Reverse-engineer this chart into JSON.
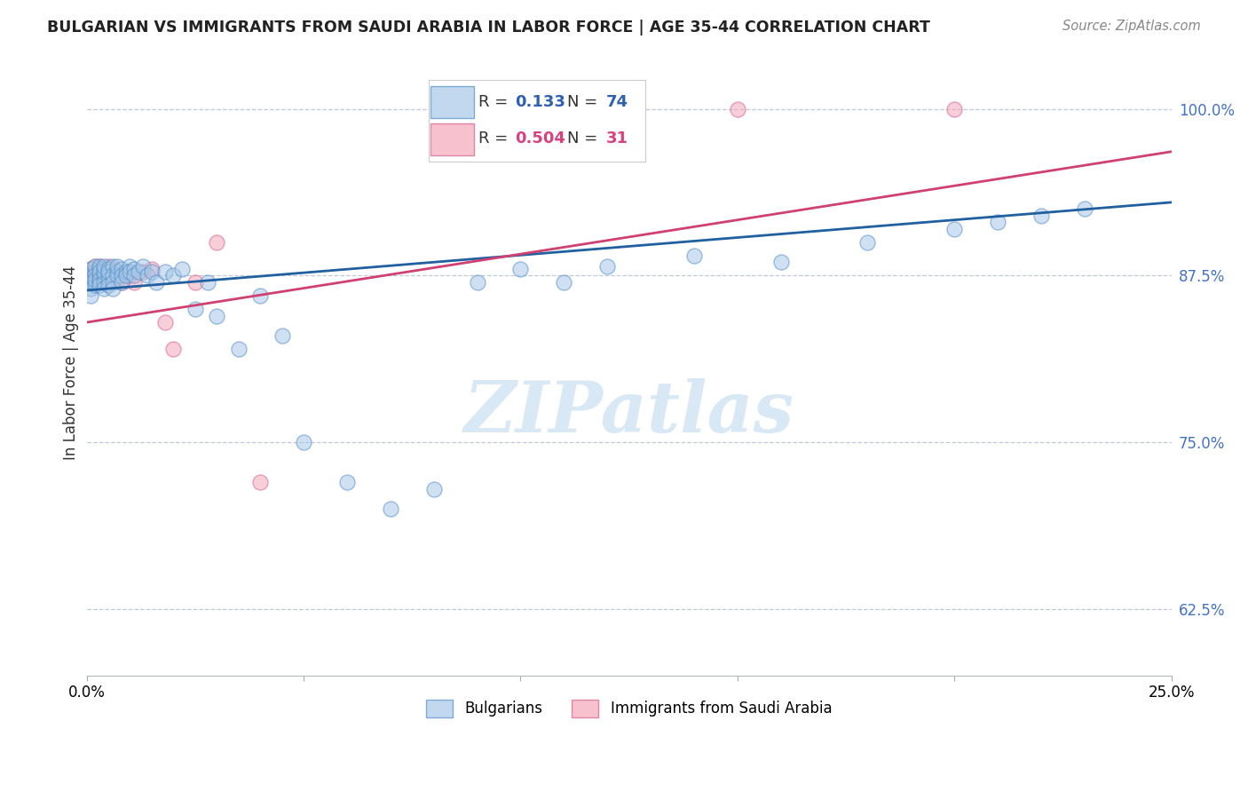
{
  "title": "BULGARIAN VS IMMIGRANTS FROM SAUDI ARABIA IN LABOR FORCE | AGE 35-44 CORRELATION CHART",
  "source": "Source: ZipAtlas.com",
  "ylabel": "In Labor Force | Age 35-44",
  "xlim": [
    0.0,
    0.25
  ],
  "ylim": [
    0.575,
    1.045
  ],
  "yticks": [
    0.625,
    0.75,
    0.875,
    1.0
  ],
  "ytick_labels": [
    "62.5%",
    "75.0%",
    "87.5%",
    "100.0%"
  ],
  "xticks": [
    0.0,
    0.05,
    0.1,
    0.15,
    0.2,
    0.25
  ],
  "xtick_labels": [
    "0.0%",
    "",
    "",
    "",
    "",
    "25.0%"
  ],
  "bulgarian_R": 0.133,
  "bulgarian_N": 74,
  "saudi_R": 0.504,
  "saudi_N": 31,
  "blue_color": "#a8c8e8",
  "pink_color": "#f4a8b8",
  "blue_edge_color": "#5590c8",
  "pink_edge_color": "#d86090",
  "blue_line_color": "#2060a0",
  "pink_line_color": "#d04070",
  "watermark_color": "#d8e8f4",
  "bulgarian_x": [
    0.001,
    0.001,
    0.001,
    0.001,
    0.001,
    0.002,
    0.002,
    0.002,
    0.002,
    0.002,
    0.002,
    0.003,
    0.003,
    0.003,
    0.003,
    0.003,
    0.003,
    0.003,
    0.004,
    0.004,
    0.004,
    0.004,
    0.004,
    0.004,
    0.005,
    0.005,
    0.005,
    0.005,
    0.005,
    0.006,
    0.006,
    0.006,
    0.006,
    0.007,
    0.007,
    0.007,
    0.008,
    0.008,
    0.008,
    0.009,
    0.009,
    0.01,
    0.01,
    0.011,
    0.011,
    0.012,
    0.013,
    0.014,
    0.015,
    0.016,
    0.018,
    0.02,
    0.022,
    0.025,
    0.028,
    0.03,
    0.035,
    0.04,
    0.045,
    0.05,
    0.06,
    0.07,
    0.08,
    0.09,
    0.1,
    0.11,
    0.12,
    0.14,
    0.16,
    0.18,
    0.2,
    0.21,
    0.22,
    0.23
  ],
  "bulgarian_y": [
    0.875,
    0.88,
    0.87,
    0.865,
    0.86,
    0.878,
    0.882,
    0.87,
    0.868,
    0.875,
    0.872,
    0.88,
    0.875,
    0.87,
    0.882,
    0.878,
    0.872,
    0.868,
    0.88,
    0.875,
    0.87,
    0.878,
    0.882,
    0.865,
    0.88,
    0.875,
    0.872,
    0.868,
    0.878,
    0.882,
    0.875,
    0.87,
    0.865,
    0.878,
    0.875,
    0.882,
    0.88,
    0.875,
    0.87,
    0.878,
    0.875,
    0.882,
    0.878,
    0.88,
    0.875,
    0.878,
    0.882,
    0.875,
    0.878,
    0.87,
    0.878,
    0.875,
    0.88,
    0.85,
    0.87,
    0.845,
    0.82,
    0.86,
    0.83,
    0.75,
    0.72,
    0.7,
    0.715,
    0.87,
    0.88,
    0.87,
    0.882,
    0.89,
    0.885,
    0.9,
    0.91,
    0.915,
    0.92,
    0.925
  ],
  "saudi_x": [
    0.001,
    0.001,
    0.002,
    0.002,
    0.002,
    0.003,
    0.003,
    0.003,
    0.004,
    0.004,
    0.004,
    0.005,
    0.005,
    0.005,
    0.006,
    0.006,
    0.007,
    0.007,
    0.008,
    0.009,
    0.01,
    0.011,
    0.013,
    0.015,
    0.018,
    0.02,
    0.025,
    0.03,
    0.04,
    0.15,
    0.2
  ],
  "saudi_y": [
    0.875,
    0.88,
    0.878,
    0.872,
    0.882,
    0.87,
    0.878,
    0.882,
    0.875,
    0.87,
    0.878,
    0.882,
    0.87,
    0.878,
    0.88,
    0.875,
    0.878,
    0.872,
    0.87,
    0.878,
    0.875,
    0.87,
    0.878,
    0.88,
    0.84,
    0.82,
    0.87,
    0.9,
    0.72,
    1.0,
    1.0
  ],
  "blue_line_y0": 0.864,
  "blue_line_y1": 0.93,
  "pink_line_y0": 0.84,
  "pink_line_y1": 0.968
}
